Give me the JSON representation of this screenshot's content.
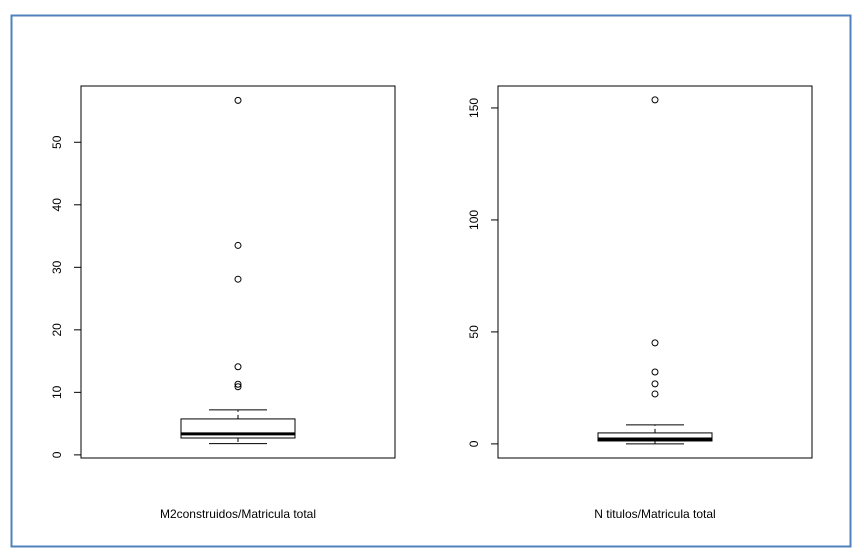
{
  "chart_data": [
    {
      "type": "box",
      "xlabel": "M2construidos/Matricula total",
      "ylim": [
        -0.5,
        59
      ],
      "yticks": [
        0,
        10,
        20,
        30,
        40,
        50
      ],
      "box": {
        "whislo": 1.8,
        "q1": 2.7,
        "med": 3.35,
        "q3": 5.75,
        "whishi": 7.2,
        "fliers": [
          56.7,
          33.5,
          28.1,
          14.1,
          11.3,
          10.9
        ]
      }
    },
    {
      "type": "box",
      "xlabel": "N titulos/Matricula total",
      "ylim": [
        -6.3,
        159.8
      ],
      "yticks": [
        0,
        50,
        100,
        150
      ],
      "box": {
        "whislo": 0,
        "q1": 1.3,
        "med": 2.2,
        "q3": 4.9,
        "whishi": 8.5,
        "fliers": [
          153.6,
          45.1,
          32.1,
          26.8,
          22.3
        ]
      }
    }
  ]
}
